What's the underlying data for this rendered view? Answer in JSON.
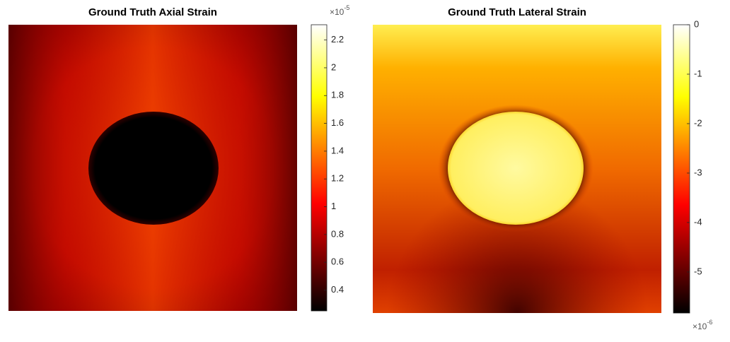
{
  "chart_data": [
    {
      "type": "heatmap",
      "title": "Ground Truth Axial Strain",
      "colormap": "hot",
      "clim": [
        0.25,
        2.31
      ],
      "cticks": [
        0.4,
        0.6,
        0.8,
        1,
        1.2,
        1.4,
        1.6,
        1.8,
        2,
        2.2
      ],
      "scale_label": {
        "base": "×10",
        "exponent": "-5"
      },
      "scale_label_position": "top"
    },
    {
      "type": "heatmap",
      "title": "Ground Truth Lateral Strain",
      "colormap": "hot",
      "clim": [
        -5.83,
        0
      ],
      "cticks": [
        -5,
        -4,
        -3,
        -2,
        -1,
        0
      ],
      "scale_label": {
        "base": "×10",
        "exponent": "-6"
      },
      "scale_label_position": "bottom"
    }
  ]
}
